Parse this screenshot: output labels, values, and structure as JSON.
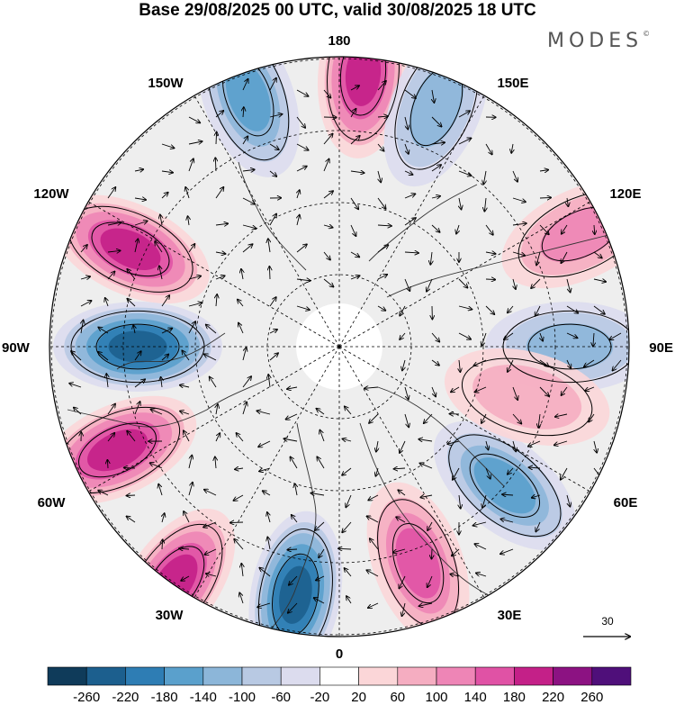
{
  "title": "Base 29/08/2025 00 UTC, valid 30/08/2025 18 UTC",
  "brand": "MODES",
  "brand_mark": "©",
  "longitude_labels": {
    "top": "180",
    "bottom": "0",
    "left": "90W",
    "right": "90E",
    "w150": "150W",
    "e150": "150E",
    "w120": "120W",
    "e120": "120E",
    "w60": "60W",
    "e60": "60E",
    "w30": "30W",
    "e30": "30E"
  },
  "vector_scale_label": "30",
  "colorbar": {
    "colors": [
      "#0f3b5a",
      "#1c5f8e",
      "#2e7db4",
      "#5aa0cc",
      "#8cb6d9",
      "#b8c9e3",
      "#dcdcee",
      "#ffffff",
      "#fbd6d8",
      "#f5adc1",
      "#ee85b6",
      "#e052a5",
      "#c42088",
      "#8c1282",
      "#4f0f7a"
    ],
    "tick_labels": [
      "-260",
      "-220",
      "-180",
      "-140",
      "-100",
      "-60",
      "-20",
      "20",
      "60",
      "100",
      "140",
      "180",
      "220",
      "260"
    ]
  },
  "anomaly_centers": [
    {
      "name": "anomaly-negative-90w",
      "lon": -90,
      "colat": 28,
      "value": -240
    },
    {
      "name": "anomaly-positive-120w",
      "lon": -115,
      "colat": 32,
      "value": 200
    },
    {
      "name": "anomaly-positive-65w",
      "lon": -65,
      "colat": 34,
      "value": 180
    },
    {
      "name": "anomaly-negative-160w",
      "lon": -160,
      "colat": 37,
      "value": -160
    },
    {
      "name": "anomaly-positive-175e",
      "lon": 175,
      "colat": 38,
      "value": 190
    },
    {
      "name": "anomaly-negative-160e",
      "lon": 158,
      "colat": 36,
      "value": -130
    },
    {
      "name": "anomaly-positive-35w",
      "lon": -35,
      "colat": 40,
      "value": 180
    },
    {
      "name": "anomaly-negative-10w",
      "lon": -10,
      "colat": 35,
      "value": -220
    },
    {
      "name": "anomaly-positive-20e",
      "lon": 20,
      "colat": 32,
      "value": 160
    },
    {
      "name": "anomaly-negative-50e",
      "lon": 50,
      "colat": 30,
      "value": -160
    },
    {
      "name": "anomaly-positive-115e",
      "lon": 115,
      "colat": 37,
      "value": 130
    },
    {
      "name": "anomaly-negative-90e",
      "lon": 90,
      "colat": 32,
      "value": -100
    },
    {
      "name": "anomaly-positive-80e",
      "lon": 75,
      "colat": 27,
      "value": 80
    }
  ]
}
